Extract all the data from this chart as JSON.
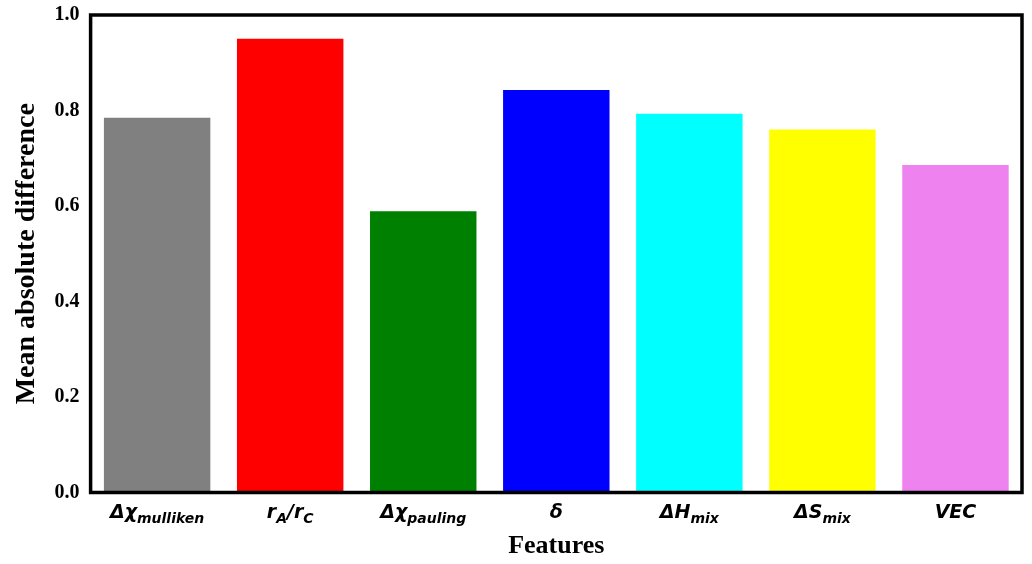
{
  "chart_data": {
    "type": "bar",
    "xlabel": "Features",
    "ylabel": "Mean absolute difference",
    "categories": [
      "Δχ$_{mulliken}$",
      "r$_{A}$/r$_{C}$",
      "Δχ$_{pauling}$",
      "δ",
      "ΔH$_{mix}$",
      "ΔS$_{mix}$",
      "VEC"
    ],
    "values": [
      0.785,
      0.95,
      0.589,
      0.843,
      0.793,
      0.76,
      0.686
    ],
    "colors": [
      "#808080",
      "#ff0000",
      "#008000",
      "#0000ff",
      "#00ffff",
      "#ffff00",
      "#ee82ee"
    ],
    "ylim": [
      0,
      1
    ],
    "yticks": [
      {
        "value": 0,
        "label": "0.0"
      },
      {
        "value": 0.2,
        "label": "0.2"
      },
      {
        "value": 0.4,
        "label": "0.4"
      },
      {
        "value": 0.6,
        "label": "0.6"
      },
      {
        "value": 0.8,
        "label": "0.8"
      },
      {
        "value": 1,
        "label": "1.0"
      }
    ],
    "grid": false,
    "legend": false
  }
}
